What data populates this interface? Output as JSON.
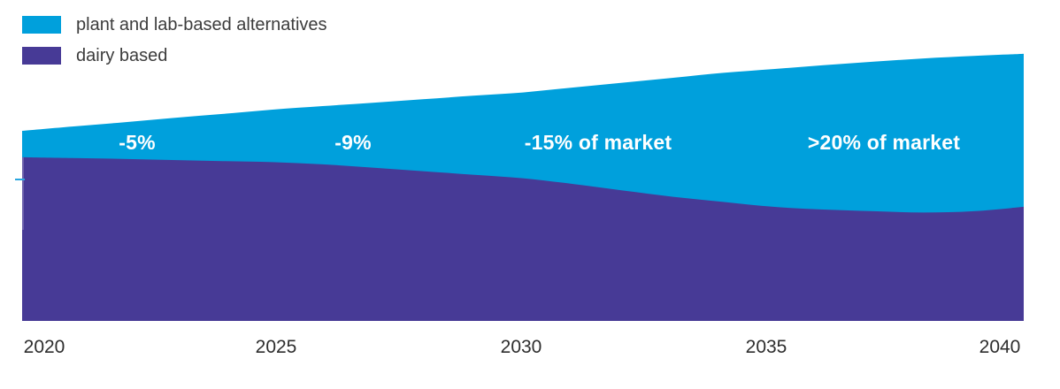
{
  "legend": {
    "items": [
      {
        "label": "plant and lab-based alternatives",
        "color": "#00a0dc"
      },
      {
        "label": "dairy based",
        "color": "#473a96"
      }
    ]
  },
  "chart_data": {
    "type": "area",
    "stacked": true,
    "title": "",
    "xlabel": "",
    "ylabel": "",
    "y_axis_visible": false,
    "y_units": "relative market volume (unlabeled axis)",
    "x_range": [
      2020,
      2040
    ],
    "x_tick_labels": [
      "2020",
      "2025",
      "2030",
      "2035",
      "2040"
    ],
    "years": [
      2020,
      2021,
      2022,
      2023,
      2024,
      2025,
      2026,
      2027,
      2028,
      2029,
      2030,
      2031,
      2032,
      2033,
      2034,
      2035,
      2036,
      2037,
      2038,
      2039,
      2040
    ],
    "series": [
      {
        "name": "plant and lab-based alternatives",
        "color": "#00a0dc",
        "values": [
          9.7,
          11.6,
          13.4,
          15.4,
          17.3,
          19.3,
          21.4,
          23.8,
          26.4,
          29.0,
          31.5,
          35.4,
          39.6,
          43.7,
          47.4,
          50.6,
          53.0,
          54.9,
          56.6,
          57.0,
          56.2
        ]
      },
      {
        "name": "dairy based",
        "color": "#473a96",
        "values": [
          60.1,
          59.8,
          59.5,
          59.1,
          58.7,
          58.3,
          57.5,
          56.3,
          55.0,
          53.7,
          52.4,
          50.3,
          47.9,
          45.6,
          43.7,
          41.9,
          40.9,
          40.3,
          39.8,
          40.3,
          41.9
        ]
      }
    ],
    "annotations": [
      {
        "label": "-5%",
        "x_year": 2022.3,
        "color": "#ffffff"
      },
      {
        "label": "-9%",
        "x_year": 2026.6,
        "color": "#ffffff"
      },
      {
        "label": "-15% of market",
        "x_year": 2031.5,
        "color": "#ffffff"
      },
      {
        "label": ">20% of market",
        "x_year": 2037.2,
        "color": "#ffffff"
      }
    ],
    "axis_tick_color": "#2aa6df",
    "legend_position": "top-left",
    "grid": false
  }
}
